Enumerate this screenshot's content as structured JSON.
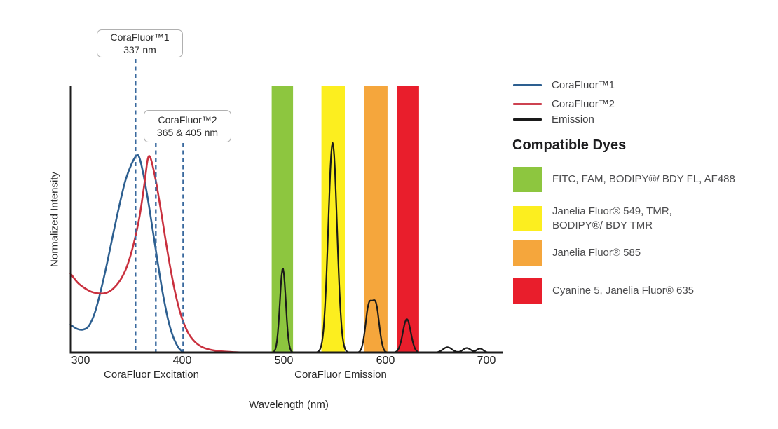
{
  "chart_data": {
    "type": "line",
    "title": "",
    "xlabel": "Wavelength (nm)",
    "ylabel": "Normalized Intensity",
    "x_ticks": [
      "300",
      "400",
      "500",
      "600",
      "700"
    ],
    "x_range_nm": [
      290,
      716
    ],
    "ylim": [
      0,
      1
    ],
    "grid": false,
    "x_group_labels": [
      {
        "text": "CoraFluor Excitation",
        "center_nm": 369
      },
      {
        "text": "CoraFluor Emission",
        "center_nm": 556
      }
    ],
    "dashed_guides": [
      {
        "nm_drawn": 354,
        "belongs_to": "CoraFluor™1 337 nm"
      },
      {
        "nm_drawn": 374,
        "belongs_to": "CoraFluor™2 365 nm"
      },
      {
        "nm_drawn": 401,
        "belongs_to": "CoraFluor™2 405 nm"
      }
    ],
    "guide_color": "#39699e",
    "filter_bands": [
      {
        "name": "green-band",
        "color": "#8dc63f",
        "range_nm": [
          488,
          509
        ]
      },
      {
        "name": "yellow-band",
        "color": "#fcee1f",
        "range_nm": [
          537,
          560
        ]
      },
      {
        "name": "orange-band",
        "color": "#f5a63c",
        "range_nm": [
          579,
          602
        ]
      },
      {
        "name": "red-band",
        "color": "#e91e2c",
        "range_nm": [
          611,
          633
        ]
      }
    ],
    "series": [
      {
        "name": "CoraFluor™1",
        "role": "excitation",
        "color": "#2d5f90",
        "points": [
          [
            290,
            0.105
          ],
          [
            296,
            0.09
          ],
          [
            302,
            0.086
          ],
          [
            308,
            0.1
          ],
          [
            314,
            0.15
          ],
          [
            320,
            0.235
          ],
          [
            326,
            0.335
          ],
          [
            332,
            0.445
          ],
          [
            338,
            0.55
          ],
          [
            344,
            0.645
          ],
          [
            350,
            0.707
          ],
          [
            355,
            0.74
          ],
          [
            358,
            0.73
          ],
          [
            362,
            0.665
          ],
          [
            366,
            0.58
          ],
          [
            371,
            0.46
          ],
          [
            376,
            0.335
          ],
          [
            381,
            0.22
          ],
          [
            386,
            0.125
          ],
          [
            391,
            0.06
          ],
          [
            396,
            0.02
          ],
          [
            400,
            0.004
          ],
          [
            402,
            0
          ]
        ]
      },
      {
        "name": "CoraFluor™2",
        "role": "excitation",
        "color": "#c9303e",
        "points": [
          [
            290,
            0.297
          ],
          [
            297,
            0.263
          ],
          [
            304,
            0.242
          ],
          [
            311,
            0.228
          ],
          [
            318,
            0.222
          ],
          [
            325,
            0.224
          ],
          [
            332,
            0.24
          ],
          [
            339,
            0.272
          ],
          [
            345,
            0.318
          ],
          [
            351,
            0.39
          ],
          [
            357,
            0.49
          ],
          [
            361,
            0.585
          ],
          [
            364,
            0.67
          ],
          [
            366,
            0.725
          ],
          [
            368,
            0.737
          ],
          [
            371,
            0.7
          ],
          [
            375,
            0.625
          ],
          [
            380,
            0.51
          ],
          [
            385,
            0.39
          ],
          [
            390,
            0.283
          ],
          [
            395,
            0.193
          ],
          [
            400,
            0.126
          ],
          [
            406,
            0.073
          ],
          [
            412,
            0.042
          ],
          [
            419,
            0.022
          ],
          [
            427,
            0.011
          ],
          [
            437,
            0.005
          ],
          [
            448,
            0.002
          ],
          [
            462,
            0
          ]
        ]
      },
      {
        "name": "Emission",
        "role": "emission",
        "color": "#1a1a1a",
        "range_nm": [
          470,
          704
        ],
        "gaussian_components": [
          {
            "center_nm": 499,
            "height": 0.316,
            "sigma_nm": 2.9
          },
          {
            "center_nm": 548,
            "height": 0.787,
            "sigma_nm": 4.3
          },
          {
            "center_nm": 583.5,
            "height": 0.165,
            "sigma_nm": 3.3
          },
          {
            "center_nm": 590.5,
            "height": 0.172,
            "sigma_nm": 3.4
          },
          {
            "center_nm": 621,
            "height": 0.126,
            "sigma_nm": 3.9
          },
          {
            "center_nm": 661,
            "height": 0.02,
            "sigma_nm": 4.4
          },
          {
            "center_nm": 680,
            "height": 0.017,
            "sigma_nm": 3.8
          },
          {
            "center_nm": 693,
            "height": 0.015,
            "sigma_nm": 3.2
          }
        ]
      }
    ]
  },
  "annotations": [
    {
      "title": "CoraFluor™1",
      "value": "337 nm"
    },
    {
      "title": "CoraFluor™2",
      "value": "365 & 405 nm"
    }
  ],
  "legend": {
    "items": [
      {
        "label": "CoraFluor™1",
        "color": "#2d5f90"
      },
      {
        "label": "CoraFluor™2",
        "color": "#cd4250"
      },
      {
        "label": "Emission",
        "color": "#1a1a1a"
      }
    ]
  },
  "compatible_dyes": {
    "heading": "Compatible Dyes",
    "items": [
      {
        "swatch_color": "#8dc63f",
        "label": "FITC, FAM, BODIPY®/ BDY FL, AF488"
      },
      {
        "swatch_color": "#fcee1f",
        "label": "Janelia Fluor® 549, TMR,\nBODIPY®/ BDY TMR"
      },
      {
        "swatch_color": "#f5a63c",
        "label": "Janelia Fluor® 585"
      },
      {
        "swatch_color": "#e91e2c",
        "label": "Cyanine 5, Janelia Fluor® 635"
      }
    ]
  }
}
